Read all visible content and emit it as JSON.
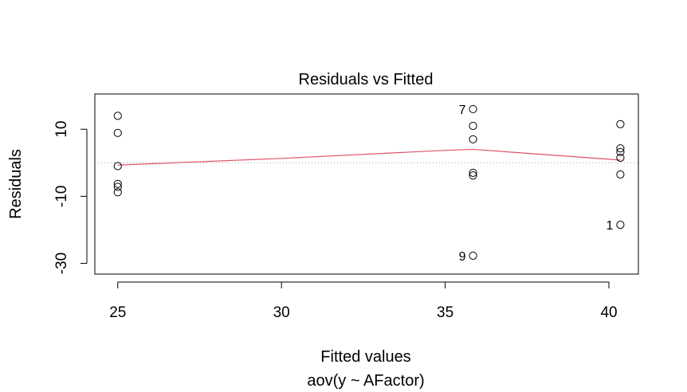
{
  "chart_data": {
    "type": "scatter",
    "title": "Residuals vs Fitted",
    "xlabel": "Fitted values",
    "subtitle": "aov(y ~ AFactor)",
    "ylabel": "Residuals",
    "xlim": [
      24.3,
      40.9
    ],
    "ylim": [
      -33.2,
      20.5
    ],
    "xticks": [
      25,
      30,
      35,
      40
    ],
    "yticks": [
      -30,
      -10,
      10
    ],
    "points": [
      {
        "x": 25.0,
        "y": 14.0
      },
      {
        "x": 25.0,
        "y": 8.9
      },
      {
        "x": 25.0,
        "y": -1.0
      },
      {
        "x": 25.0,
        "y": -6.3
      },
      {
        "x": 25.0,
        "y": -7.2
      },
      {
        "x": 25.0,
        "y": -8.8
      },
      {
        "x": 35.85,
        "y": 16.0,
        "label": "7"
      },
      {
        "x": 35.85,
        "y": 11.0
      },
      {
        "x": 35.85,
        "y": 7.0
      },
      {
        "x": 35.85,
        "y": -3.0
      },
      {
        "x": 35.85,
        "y": -3.8
      },
      {
        "x": 35.85,
        "y": -27.7,
        "label": "9"
      },
      {
        "x": 40.35,
        "y": 11.5
      },
      {
        "x": 40.35,
        "y": 4.3
      },
      {
        "x": 40.35,
        "y": 3.2
      },
      {
        "x": 40.35,
        "y": 1.5
      },
      {
        "x": 40.35,
        "y": -3.5
      },
      {
        "x": 40.35,
        "y": -18.5,
        "label": "1"
      }
    ],
    "smooth_line": {
      "color": "#DF536B",
      "points": [
        [
          25.0,
          -0.7
        ],
        [
          30.0,
          1.3
        ],
        [
          35.0,
          3.7
        ],
        [
          35.85,
          4.0
        ],
        [
          40.35,
          0.8
        ]
      ]
    },
    "reference_line": {
      "y": 0,
      "style": "dotted",
      "color": "#9e9e9e"
    }
  }
}
